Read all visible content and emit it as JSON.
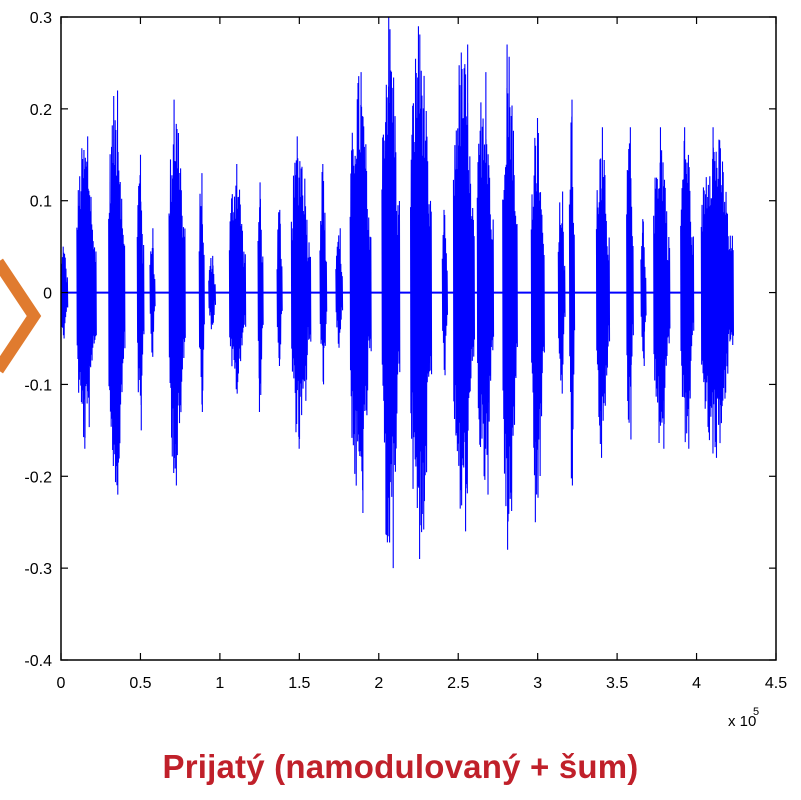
{
  "chart_data": {
    "type": "line",
    "title": "",
    "xlabel": "",
    "ylabel": "",
    "x_multiplier_label": "x 10",
    "x_multiplier_exponent": "5",
    "xlim": [
      0,
      4.5
    ],
    "ylim": [
      -0.4,
      0.3
    ],
    "xticks": [
      "0",
      "0.5",
      "1",
      "1.5",
      "2",
      "2.5",
      "3",
      "3.5",
      "4",
      "4.5"
    ],
    "yticks": [
      "0.3",
      "0.2",
      "0.1",
      "0",
      "-0.1",
      "-0.2",
      "-0.3",
      "-0.4"
    ],
    "series": [
      {
        "color": "#0000ff",
        "signal_span": [
          0,
          4.23
        ],
        "bursts": [
          {
            "start": 0.0,
            "end": 0.04,
            "peak": 0.05,
            "trough": -0.05
          },
          {
            "start": 0.1,
            "end": 0.22,
            "peak": 0.17,
            "trough": -0.17
          },
          {
            "start": 0.3,
            "end": 0.4,
            "peak": 0.22,
            "trough": -0.22
          },
          {
            "start": 0.48,
            "end": 0.52,
            "peak": 0.15,
            "trough": -0.15
          },
          {
            "start": 0.56,
            "end": 0.59,
            "peak": 0.07,
            "trough": -0.07
          },
          {
            "start": 0.68,
            "end": 0.78,
            "peak": 0.21,
            "trough": -0.21
          },
          {
            "start": 0.87,
            "end": 0.9,
            "peak": 0.13,
            "trough": -0.13
          },
          {
            "start": 0.93,
            "end": 0.97,
            "peak": 0.04,
            "trough": -0.04
          },
          {
            "start": 1.06,
            "end": 1.16,
            "peak": 0.14,
            "trough": -0.11
          },
          {
            "start": 1.24,
            "end": 1.27,
            "peak": 0.12,
            "trough": -0.13
          },
          {
            "start": 1.36,
            "end": 1.39,
            "peak": 0.09,
            "trough": -0.08
          },
          {
            "start": 1.45,
            "end": 1.57,
            "peak": 0.17,
            "trough": -0.17
          },
          {
            "start": 1.63,
            "end": 1.67,
            "peak": 0.14,
            "trough": -0.1
          },
          {
            "start": 1.73,
            "end": 1.77,
            "peak": 0.07,
            "trough": -0.06
          },
          {
            "start": 1.82,
            "end": 1.95,
            "peak": 0.24,
            "trough": -0.24
          },
          {
            "start": 2.02,
            "end": 2.13,
            "peak": 0.3,
            "trough": -0.3
          },
          {
            "start": 2.2,
            "end": 2.33,
            "peak": 0.29,
            "trough": -0.29
          },
          {
            "start": 2.4,
            "end": 2.43,
            "peak": 0.09,
            "trough": -0.09
          },
          {
            "start": 2.47,
            "end": 2.6,
            "peak": 0.27,
            "trough": -0.26
          },
          {
            "start": 2.62,
            "end": 2.72,
            "peak": 0.24,
            "trough": -0.22
          },
          {
            "start": 2.78,
            "end": 2.87,
            "peak": 0.27,
            "trough": -0.28
          },
          {
            "start": 2.96,
            "end": 3.04,
            "peak": 0.19,
            "trough": -0.25
          },
          {
            "start": 3.13,
            "end": 3.17,
            "peak": 0.11,
            "trough": -0.11
          },
          {
            "start": 3.2,
            "end": 3.23,
            "peak": 0.21,
            "trough": -0.21
          },
          {
            "start": 3.37,
            "end": 3.45,
            "peak": 0.18,
            "trough": -0.18
          },
          {
            "start": 3.56,
            "end": 3.6,
            "peak": 0.18,
            "trough": -0.16
          },
          {
            "start": 3.65,
            "end": 3.68,
            "peak": 0.08,
            "trough": -0.08
          },
          {
            "start": 3.73,
            "end": 3.83,
            "peak": 0.18,
            "trough": -0.17
          },
          {
            "start": 3.9,
            "end": 3.98,
            "peak": 0.18,
            "trough": -0.17
          },
          {
            "start": 4.03,
            "end": 4.23,
            "peak": 0.18,
            "trough": -0.18
          }
        ]
      }
    ],
    "grid": false
  },
  "caption": "Prijatý (namodulovaný + šum)",
  "colors": {
    "signal": "#0000ff",
    "caption": "#c0202a",
    "chevron": "#e07b2f",
    "axis": "#000000"
  },
  "decor": {
    "left_chevron_icon": "chevron-right-icon"
  }
}
